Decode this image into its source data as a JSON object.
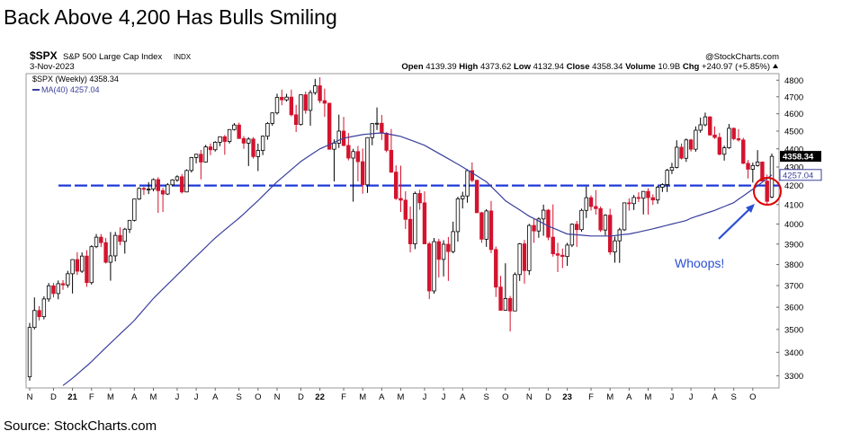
{
  "chart_data": {
    "type": "candlestick",
    "title": "Back Above 4,200 Has Bulls Smiling",
    "source": "Source: StockCharts.com",
    "symbol": "$SPX",
    "symbol_name": "S&P 500 Large Cap Index",
    "exchange": "INDX",
    "watermark": "@StockCharts.com",
    "date": "3-Nov-2023",
    "info": {
      "open_label": "Open",
      "high_label": "High",
      "low_label": "Low",
      "close_label": "Close",
      "volume_label": "Volume",
      "volume": "10.9B",
      "chg_label": "Chg",
      "chg": "+240.97 (+5.85%)"
    },
    "price_name": "$SPX (Weekly)",
    "annotation": "Whoops!",
    "hline": 4200,
    "hline_color": "#1f3ad8",
    "up_color": "#000000",
    "down_color": "#d4132e",
    "annotation_color": "#2a4fd4",
    "log_scale": true,
    "grid": false,
    "categories": [
      "N",
      null,
      null,
      null,
      null,
      "D",
      null,
      null,
      null,
      "21",
      null,
      null,
      null,
      "F",
      null,
      null,
      null,
      "M",
      null,
      null,
      null,
      null,
      "A",
      null,
      null,
      null,
      "M",
      null,
      null,
      null,
      null,
      "J",
      null,
      null,
      null,
      "J",
      null,
      null,
      null,
      "A",
      null,
      null,
      null,
      null,
      "S",
      null,
      null,
      null,
      "O",
      null,
      null,
      null,
      "N",
      null,
      null,
      null,
      null,
      "D",
      null,
      null,
      null,
      "22",
      null,
      null,
      null,
      null,
      "F",
      null,
      null,
      null,
      "M",
      null,
      null,
      null,
      "A",
      null,
      null,
      null,
      "M",
      null,
      null,
      null,
      null,
      "J",
      null,
      null,
      null,
      "J",
      null,
      null,
      null,
      "A",
      null,
      null,
      null,
      null,
      "S",
      null,
      null,
      null,
      "O",
      null,
      null,
      null,
      null,
      "N",
      null,
      null,
      null,
      "D",
      null,
      null,
      null,
      "23",
      null,
      null,
      null,
      null,
      "F",
      null,
      null,
      null,
      "M",
      null,
      null,
      null,
      "A",
      null,
      null,
      null,
      "M",
      null,
      null,
      null,
      null,
      "J",
      null,
      null,
      null,
      "J",
      null,
      null,
      null,
      null,
      "A",
      null,
      null,
      null,
      "S",
      null,
      null,
      null,
      "O",
      null,
      null,
      null,
      null
    ],
    "open": [
      3296,
      3509,
      3585,
      3557,
      3638,
      3699,
      3663,
      3709,
      3703,
      3756,
      3824,
      3768,
      3841,
      3714,
      3887,
      3934,
      3907,
      3811,
      3842,
      3943,
      3913,
      3974,
      4019,
      4129,
      4185,
      4180,
      4181,
      4232,
      4173,
      4155,
      4204,
      4230,
      4247,
      4166,
      4281,
      4352,
      4370,
      4327,
      4411,
      4395,
      4437,
      4468,
      4441,
      4509,
      4535,
      4458,
      4432,
      4455,
      4357,
      4391,
      4471,
      4544,
      4605,
      4697,
      4682,
      4698,
      4594,
      4538,
      4712,
      4620,
      4725,
      4766,
      4677,
      4662,
      4398,
      4432,
      4500,
      4419,
      4349,
      4385,
      4329,
      4204,
      4463,
      4543,
      4545,
      4488,
      4392,
      4272,
      4132,
      4123,
      4024,
      3901,
      4158,
      4109,
      3901,
      3675,
      3912,
      3825,
      3899,
      3863,
      3962,
      4130,
      4145,
      4280,
      4228,
      4058,
      3924,
      4067,
      3873,
      3693,
      3586,
      3640,
      3583,
      3752,
      3901,
      3771,
      3993,
      3965,
      4026,
      4071,
      3934,
      3852,
      3845,
      3839,
      3895,
      3999,
      3972,
      4070,
      4136,
      4090,
      4079,
      3970,
      4045,
      3861,
      3916,
      3971,
      4109,
      4105,
      4137,
      4133,
      4169,
      4136,
      4124,
      4191,
      4205,
      4282,
      4298,
      4409,
      4348,
      4450,
      4398,
      4505,
      4536,
      4582,
      4478,
      4464,
      4370,
      4406,
      4516,
      4457,
      4450,
      4320,
      4288,
      4308,
      4327,
      4224,
      4139.39
    ],
    "high": [
      3529,
      3645,
      3605,
      3650,
      3712,
      3712,
      3724,
      3726,
      3770,
      3826,
      3860,
      3859,
      3870,
      3894,
      3950,
      3950,
      3930,
      3960,
      3960,
      3983,
      3981,
      4020,
      4130,
      4191,
      4194,
      4218,
      4238,
      4245,
      4188,
      4213,
      4234,
      4255,
      4262,
      4287,
      4355,
      4372,
      4394,
      4422,
      4430,
      4443,
      4470,
      4478,
      4511,
      4546,
      4549,
      4472,
      4465,
      4466,
      4429,
      4475,
      4552,
      4608,
      4718,
      4743,
      4718,
      4743,
      4652,
      4713,
      4731,
      4740,
      4808,
      4818,
      4749,
      4664,
      4453,
      4595,
      4582,
      4490,
      4400,
      4416,
      4402,
      4465,
      4546,
      4637,
      4593,
      4494,
      4512,
      4309,
      4307,
      4170,
      4090,
      4168,
      4178,
      4169,
      3910,
      3930,
      3926,
      3919,
      3935,
      4012,
      4141,
      4167,
      4288,
      4325,
      4232,
      4062,
      4076,
      4119,
      3888,
      3746,
      3806,
      3652,
      3762,
      3905,
      3920,
      4001,
      4028,
      4034,
      4100,
      4077,
      4101,
      3906,
      3878,
      3906,
      4003,
      4016,
      4079,
      4195,
      4148,
      4176,
      4090,
      4050,
      4078,
      3937,
      3981,
      4110,
      4133,
      4150,
      4164,
      4170,
      4186,
      4153,
      4198,
      4212,
      4290,
      4323,
      4448,
      4430,
      4458,
      4456,
      4527,
      4578,
      4607,
      4585,
      4527,
      4490,
      4418,
      4541,
      4520,
      4511,
      4462,
      4338,
      4324,
      4393,
      4330,
      4259,
      4373.62
    ],
    "low": [
      3280,
      3500,
      3540,
      3545,
      3625,
      3645,
      3636,
      3680,
      3690,
      3663,
      3750,
      3760,
      3694,
      3705,
      3880,
      3885,
      3805,
      3723,
      3815,
      3894,
      3853,
      3955,
      4013,
      4124,
      4150,
      4155,
      4170,
      4057,
      4062,
      4150,
      4197,
      4220,
      4158,
      4165,
      4270,
      4320,
      4233,
      4324,
      4365,
      4385,
      4415,
      4367,
      4430,
      4503,
      4457,
      4400,
      4305,
      4346,
      4278,
      4365,
      4451,
      4531,
      4595,
      4650,
      4672,
      4585,
      4495,
      4532,
      4600,
      4531,
      4712,
      4662,
      4582,
      4395,
      4222,
      4405,
      4414,
      4336,
      4115,
      4223,
      4157,
      4161,
      4420,
      4506,
      4450,
      4381,
      4268,
      4124,
      4062,
      3975,
      3859,
      3875,
      4073,
      3900,
      3637,
      3662,
      3738,
      3743,
      3722,
      3855,
      3912,
      4080,
      4110,
      4218,
      4057,
      3906,
      3886,
      3855,
      3647,
      3584,
      3584,
      3491,
      3590,
      3722,
      3709,
      3750,
      3906,
      3931,
      3941,
      3919,
      3838,
      3764,
      3783,
      3794,
      3885,
      3886,
      3961,
      4031,
      4069,
      4048,
      3960,
      3943,
      3847,
      3809,
      3808,
      3965,
      4069,
      4072,
      4113,
      4049,
      4048,
      4098,
      4104,
      4166,
      4166,
      4262,
      4292,
      4341,
      4328,
      4385,
      4384,
      4491,
      4528,
      4474,
      4456,
      4364,
      4335,
      4400,
      4448,
      4441,
      4316,
      4238,
      4216,
      4302,
      4223,
      4104,
      4132.94
    ],
    "close": [
      3509,
      3585,
      3557,
      3638,
      3699,
      3663,
      3709,
      3703,
      3756,
      3824,
      3768,
      3841,
      3714,
      3887,
      3934,
      3907,
      3811,
      3842,
      3943,
      3913,
      3974,
      4019,
      4129,
      4185,
      4180,
      4181,
      4232,
      4173,
      4155,
      4204,
      4230,
      4247,
      4166,
      4281,
      4352,
      4370,
      4327,
      4411,
      4395,
      4437,
      4468,
      4441,
      4509,
      4535,
      4458,
      4432,
      4455,
      4357,
      4391,
      4471,
      4544,
      4605,
      4697,
      4682,
      4698,
      4594,
      4538,
      4712,
      4620,
      4725,
      4766,
      4677,
      4662,
      4398,
      4432,
      4500,
      4419,
      4349,
      4385,
      4329,
      4204,
      4463,
      4543,
      4545,
      4488,
      4392,
      4272,
      4132,
      4123,
      4024,
      3901,
      4158,
      4109,
      3901,
      3675,
      3912,
      3825,
      3899,
      3863,
      3962,
      4130,
      4145,
      4280,
      4228,
      4058,
      3924,
      4067,
      3873,
      3693,
      3586,
      3640,
      3583,
      3752,
      3901,
      3771,
      3993,
      3965,
      4026,
      4071,
      3934,
      3852,
      3845,
      3839,
      3895,
      3999,
      3972,
      4070,
      4136,
      4090,
      4079,
      3970,
      4045,
      3861,
      3916,
      3971,
      4109,
      4105,
      4137,
      4133,
      4169,
      4136,
      4124,
      4191,
      4205,
      4282,
      4298,
      4409,
      4348,
      4450,
      4398,
      4505,
      4536,
      4582,
      4478,
      4464,
      4370,
      4406,
      4516,
      4457,
      4450,
      4320,
      4288,
      4308,
      4327,
      4224,
      4117,
      4358.34
    ],
    "ma": {
      "name": "MA(40)",
      "color": "#3a3f9c",
      "values": [
        null,
        null,
        null,
        null,
        null,
        null,
        null,
        3260,
        3275,
        3290,
        3307,
        3325,
        3342,
        3360,
        3380,
        3400,
        3420,
        3440,
        3460,
        3480,
        3500,
        3520,
        3540,
        3565,
        3590,
        3615,
        3640,
        3662,
        3684,
        3706,
        3728,
        3750,
        3772,
        3795,
        3818,
        3840,
        3862,
        3885,
        3908,
        3930,
        3950,
        3970,
        3990,
        4010,
        4030,
        4052,
        4075,
        4098,
        4120,
        4145,
        4170,
        4195,
        4220,
        4242,
        4264,
        4286,
        4308,
        4330,
        4348,
        4365,
        4383,
        4400,
        4412,
        4424,
        4436,
        4448,
        4460,
        4465,
        4470,
        4475,
        4480,
        4483,
        4485,
        4488,
        4490,
        4485,
        4480,
        4475,
        4470,
        4460,
        4450,
        4440,
        4430,
        4420,
        4405,
        4390,
        4375,
        4360,
        4345,
        4330,
        4315,
        4300,
        4284,
        4268,
        4252,
        4236,
        4220,
        4195,
        4170,
        4145,
        4120,
        4104,
        4088,
        4072,
        4056,
        4040,
        4028,
        4015,
        4003,
        3990,
        3980,
        3970,
        3960,
        3950,
        3948,
        3946,
        3944,
        3942,
        3940,
        3940,
        3940,
        3940,
        3940,
        3942,
        3945,
        3948,
        3950,
        3955,
        3960,
        3965,
        3970,
        3976,
        3982,
        3988,
        3994,
        4000,
        4006,
        4012,
        4018,
        4030,
        4038,
        4046,
        4054,
        4062,
        4070,
        4080,
        4090,
        4100,
        4110,
        4128,
        4145,
        4163,
        4180,
        4199,
        4218,
        4238,
        4257.04
      ]
    },
    "ylim": [
      3250,
      4840
    ],
    "yticks": [
      3300,
      3400,
      3500,
      3600,
      3700,
      3800,
      3900,
      4000,
      4100,
      4200,
      4300,
      4400,
      4500,
      4600,
      4700,
      4800
    ]
  }
}
